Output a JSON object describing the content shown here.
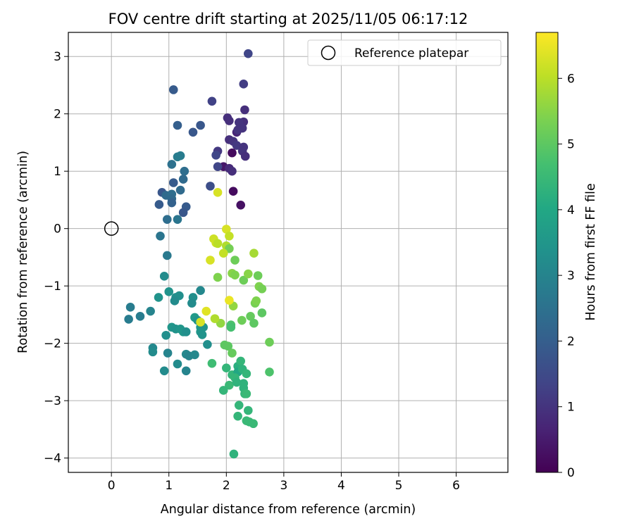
{
  "chart_data": {
    "type": "scatter",
    "title": "FOV centre drift starting at 2025/11/05 06:17:12",
    "xlabel": "Angular distance from reference (arcmin)",
    "ylabel": "Rotation from reference (arcmin)",
    "xlim": [
      -0.75,
      6.9
    ],
    "ylim": [
      -4.25,
      3.42
    ],
    "xticks": [
      0,
      1,
      2,
      3,
      4,
      5,
      6
    ],
    "yticks": [
      -4,
      -3,
      -2,
      -1,
      0,
      1,
      2,
      3
    ],
    "grid": true,
    "legend": {
      "location": "top-right",
      "entries": [
        "Reference platepar"
      ]
    },
    "reference_point": {
      "x": 0,
      "y": 0,
      "label": "Reference platepar"
    },
    "colorbar": {
      "label": "Hours from first FF file",
      "min": 0,
      "max": 6.7,
      "ticks": [
        0,
        1,
        2,
        3,
        4,
        5,
        6
      ],
      "colormap": "viridis"
    },
    "series": [
      {
        "name": "FOV centre",
        "points": [
          [
            2.38,
            3.05,
            1.4
          ],
          [
            2.3,
            2.52,
            1.2
          ],
          [
            2.32,
            2.07,
            0.9
          ],
          [
            2.02,
            1.93,
            0.9
          ],
          [
            2.05,
            1.88,
            0.9
          ],
          [
            2.3,
            1.86,
            0.9
          ],
          [
            2.22,
            1.85,
            1.0
          ],
          [
            2.28,
            1.75,
            1.0
          ],
          [
            2.18,
            1.68,
            0.7
          ],
          [
            2.2,
            1.72,
            1.0
          ],
          [
            2.05,
            1.55,
            0.9
          ],
          [
            2.12,
            1.52,
            1.0
          ],
          [
            2.18,
            1.45,
            1.1
          ],
          [
            2.3,
            1.42,
            1.0
          ],
          [
            2.28,
            1.35,
            1.0
          ],
          [
            2.33,
            1.26,
            0.9
          ],
          [
            2.1,
            1.32,
            0.2
          ],
          [
            1.95,
            1.08,
            0.4
          ],
          [
            2.05,
            1.05,
            0.8
          ],
          [
            2.1,
            1.0,
            0.9
          ],
          [
            2.12,
            0.65,
            0.2
          ],
          [
            2.25,
            0.41,
            0.3
          ],
          [
            1.85,
            1.35,
            1.1
          ],
          [
            1.82,
            1.28,
            1.4
          ],
          [
            1.85,
            1.08,
            1.4
          ],
          [
            1.75,
            2.22,
            1.3
          ],
          [
            1.55,
            1.8,
            1.8
          ],
          [
            1.42,
            1.68,
            1.8
          ],
          [
            1.15,
            1.8,
            2.0
          ],
          [
            1.08,
            2.42,
            1.9
          ],
          [
            1.05,
            1.12,
            2.5
          ],
          [
            1.15,
            1.25,
            2.8
          ],
          [
            1.2,
            1.27,
            2.8
          ],
          [
            1.27,
            1.0,
            2.4
          ],
          [
            1.25,
            0.86,
            2.3
          ],
          [
            1.08,
            0.8,
            1.9
          ],
          [
            0.88,
            0.63,
            1.8
          ],
          [
            0.95,
            0.58,
            2.3
          ],
          [
            1.05,
            0.6,
            2.4
          ],
          [
            1.05,
            0.52,
            2.3
          ],
          [
            1.2,
            0.67,
            2.3
          ],
          [
            1.05,
            0.45,
            2.1
          ],
          [
            0.83,
            0.42,
            1.9
          ],
          [
            1.3,
            0.38,
            1.9
          ],
          [
            1.25,
            0.28,
            1.8
          ],
          [
            0.97,
            0.16,
            2.4
          ],
          [
            1.15,
            0.16,
            2.6
          ],
          [
            1.72,
            0.74,
            1.6
          ],
          [
            0.85,
            -0.13,
            2.6
          ],
          [
            0.97,
            -0.47,
            2.7
          ],
          [
            0.92,
            -0.83,
            3.2
          ],
          [
            1.0,
            -1.1,
            3.4
          ],
          [
            0.82,
            -1.2,
            3.4
          ],
          [
            1.12,
            -1.2,
            3.3
          ],
          [
            1.18,
            -1.17,
            3.3
          ],
          [
            1.1,
            -1.26,
            3.2
          ],
          [
            1.42,
            -1.2,
            3.3
          ],
          [
            1.4,
            -1.3,
            3.2
          ],
          [
            1.55,
            -1.08,
            3.1
          ],
          [
            0.33,
            -1.37,
            2.8
          ],
          [
            0.3,
            -1.58,
            2.8
          ],
          [
            0.5,
            -1.53,
            2.8
          ],
          [
            0.68,
            -1.44,
            3.0
          ],
          [
            1.45,
            -1.55,
            3.6
          ],
          [
            1.5,
            -1.6,
            3.4
          ],
          [
            1.55,
            -1.72,
            3.5
          ],
          [
            1.6,
            -1.72,
            3.4
          ],
          [
            1.55,
            -1.8,
            3.5
          ],
          [
            1.58,
            -1.85,
            3.4
          ],
          [
            1.05,
            -1.72,
            3.5
          ],
          [
            1.12,
            -1.75,
            3.4
          ],
          [
            1.2,
            -1.75,
            3.5
          ],
          [
            1.25,
            -1.8,
            3.5
          ],
          [
            1.3,
            -1.8,
            3.3
          ],
          [
            0.95,
            -1.86,
            3.3
          ],
          [
            0.72,
            -2.08,
            3.1
          ],
          [
            0.72,
            -2.15,
            3.2
          ],
          [
            0.98,
            -2.17,
            3.0
          ],
          [
            1.3,
            -2.19,
            3.1
          ],
          [
            1.35,
            -2.22,
            3.0
          ],
          [
            1.45,
            -2.2,
            3.1
          ],
          [
            1.15,
            -2.36,
            3.2
          ],
          [
            0.92,
            -2.48,
            3.2
          ],
          [
            1.3,
            -2.48,
            3.0
          ],
          [
            1.67,
            -2.02,
            3.3
          ],
          [
            1.75,
            -2.35,
            4.6
          ],
          [
            1.97,
            -2.03,
            5.0
          ],
          [
            2.03,
            -2.05,
            5.0
          ],
          [
            2.1,
            -2.17,
            5.1
          ],
          [
            2.0,
            -2.43,
            4.4
          ],
          [
            2.1,
            -2.55,
            4.4
          ],
          [
            2.2,
            -2.4,
            4.2
          ],
          [
            2.25,
            -2.31,
            4.4
          ],
          [
            2.2,
            -2.5,
            4.0
          ],
          [
            2.28,
            -2.45,
            4.3
          ],
          [
            2.15,
            -2.6,
            4.4
          ],
          [
            2.3,
            -2.7,
            4.3
          ],
          [
            2.35,
            -2.53,
            4.4
          ],
          [
            2.05,
            -2.73,
            4.5
          ],
          [
            2.18,
            -2.68,
            4.3
          ],
          [
            1.95,
            -2.82,
            4.4
          ],
          [
            2.3,
            -2.78,
            4.3
          ],
          [
            2.32,
            -2.88,
            4.4
          ],
          [
            2.35,
            -2.88,
            4.5
          ],
          [
            2.22,
            -3.08,
            4.4
          ],
          [
            2.2,
            -3.27,
            4.4
          ],
          [
            2.38,
            -3.17,
            4.4
          ],
          [
            2.35,
            -3.35,
            4.5
          ],
          [
            2.4,
            -3.37,
            4.5
          ],
          [
            2.47,
            -3.4,
            4.5
          ],
          [
            2.13,
            -3.93,
            4.3
          ],
          [
            2.75,
            -2.5,
            4.8
          ],
          [
            2.75,
            -1.98,
            5.2
          ],
          [
            1.85,
            -0.85,
            5.4
          ],
          [
            2.0,
            -0.3,
            5.9
          ],
          [
            2.05,
            -0.35,
            5.3
          ],
          [
            2.15,
            -0.55,
            5.2
          ],
          [
            2.1,
            -0.78,
            5.5
          ],
          [
            2.15,
            -0.81,
            5.4
          ],
          [
            2.3,
            -0.9,
            5.2
          ],
          [
            2.38,
            -0.79,
            5.5
          ],
          [
            2.48,
            -0.43,
            5.8
          ],
          [
            2.55,
            -0.82,
            5.2
          ],
          [
            2.57,
            -1.01,
            5.4
          ],
          [
            2.62,
            -1.05,
            5.3
          ],
          [
            2.62,
            -1.47,
            5.0
          ],
          [
            2.5,
            -1.3,
            5.3
          ],
          [
            2.52,
            -1.26,
            5.4
          ],
          [
            2.42,
            -1.53,
            5.1
          ],
          [
            2.48,
            -1.65,
            5.0
          ],
          [
            2.27,
            -1.6,
            5.2
          ],
          [
            2.08,
            -1.68,
            4.8
          ],
          [
            2.08,
            -1.72,
            4.7
          ],
          [
            2.12,
            -1.35,
            5.6
          ],
          [
            1.9,
            -1.65,
            5.6
          ],
          [
            1.8,
            -1.57,
            5.9
          ],
          [
            2.05,
            -1.25,
            6.5
          ],
          [
            1.65,
            -1.44,
            6.4
          ],
          [
            1.55,
            -1.63,
            6.3
          ],
          [
            1.72,
            -0.55,
            6.3
          ],
          [
            1.78,
            -0.18,
            6.2
          ],
          [
            1.82,
            -0.25,
            6.2
          ],
          [
            1.85,
            -0.26,
            6.0
          ],
          [
            1.95,
            -0.43,
            6.1
          ],
          [
            2.0,
            -0.01,
            6.3
          ],
          [
            2.05,
            -0.13,
            6.1
          ],
          [
            1.85,
            0.63,
            6.3
          ]
        ]
      }
    ]
  }
}
